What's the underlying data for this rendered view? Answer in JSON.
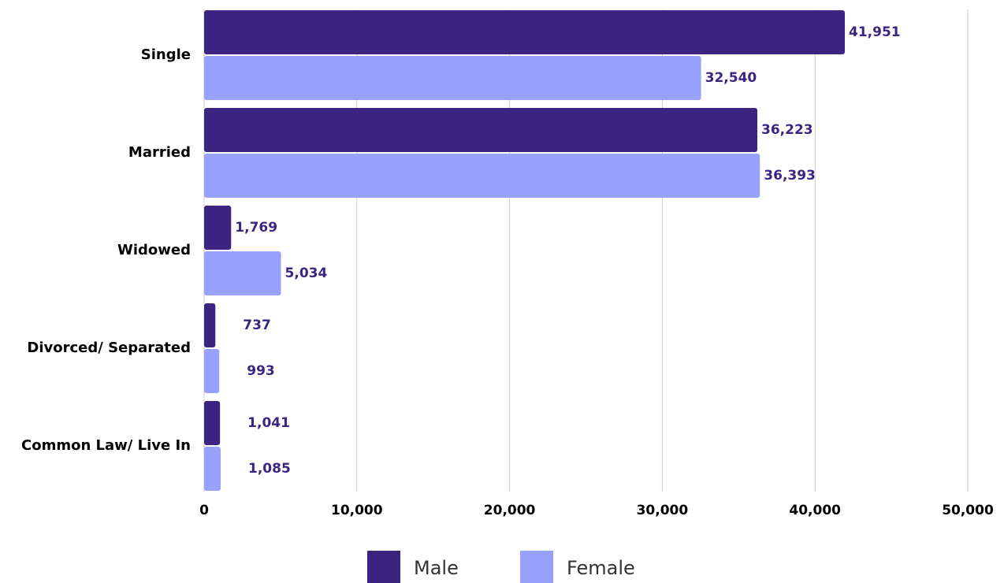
{
  "chart_data": {
    "type": "bar",
    "orientation": "horizontal",
    "categories": [
      "Single",
      "Married",
      "Widowed",
      "Divorced/ Separated",
      "Common Law/ Live In"
    ],
    "series": [
      {
        "name": "Male",
        "color": "#3b2580",
        "values": [
          41951,
          36223,
          1769,
          737,
          1041
        ],
        "value_labels": [
          "41,951",
          "36,223",
          "1,769",
          "737",
          "1,041"
        ]
      },
      {
        "name": "Female",
        "color": "#98a2fc",
        "values": [
          32540,
          36393,
          5034,
          993,
          1085
        ],
        "value_labels": [
          "32,540",
          "36,393",
          "5,034",
          "993",
          "1,085"
        ]
      }
    ],
    "xlim": [
      0,
      50000
    ],
    "xticks": [
      0,
      {
        "value": 10000,
        "label": "10,000"
      },
      {
        "value": 20000,
        "label": "20,000"
      },
      {
        "value": 30000,
        "label": "30,000"
      },
      {
        "value": 40000,
        "label": "40,000"
      },
      {
        "value": 50000,
        "label": "50,000"
      }
    ],
    "grid": true,
    "legend": "bottom"
  }
}
